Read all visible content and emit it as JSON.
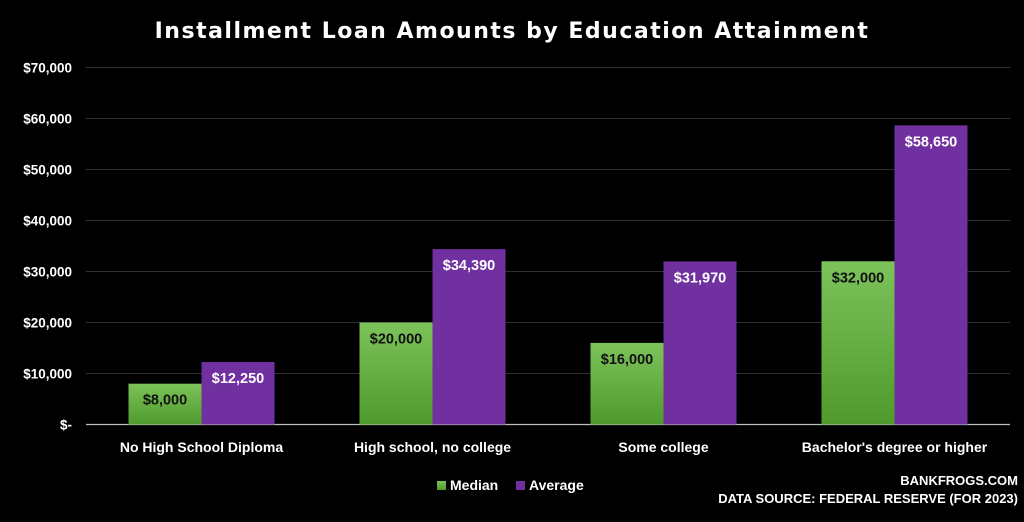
{
  "chart_data": {
    "type": "bar",
    "title": "Installment Loan Amounts by Education Attainment",
    "categories": [
      "No High School Diploma",
      "High school, no college",
      "Some college",
      "Bachelor's degree or higher"
    ],
    "series": [
      {
        "name": "Median",
        "values": [
          8000,
          20000,
          16000,
          32000
        ],
        "labels": [
          "$8,000",
          "$20,000",
          "$16,000",
          "$32,000"
        ],
        "color_top": "#7cc35a",
        "color_bottom": "#4f9a2c"
      },
      {
        "name": "Average",
        "values": [
          12250,
          34390,
          31970,
          58650
        ],
        "labels": [
          "$12,250",
          "$34,390",
          "$31,970",
          "$58,650"
        ],
        "color": "#7030a0"
      }
    ],
    "ylim": [
      0,
      70000
    ],
    "y_ticks": [
      0,
      10000,
      20000,
      30000,
      40000,
      50000,
      60000,
      70000
    ],
    "y_tick_labels": [
      "$-",
      "$10,000",
      "$20,000",
      "$30,000",
      "$40,000",
      "$50,000",
      "$60,000",
      "$70,000"
    ],
    "grid": true,
    "legend_position": "bottom"
  },
  "footer": {
    "site": "BANKFROGS.COM",
    "source": "DATA SOURCE: FEDERAL RESERVE (FOR 2023)"
  }
}
